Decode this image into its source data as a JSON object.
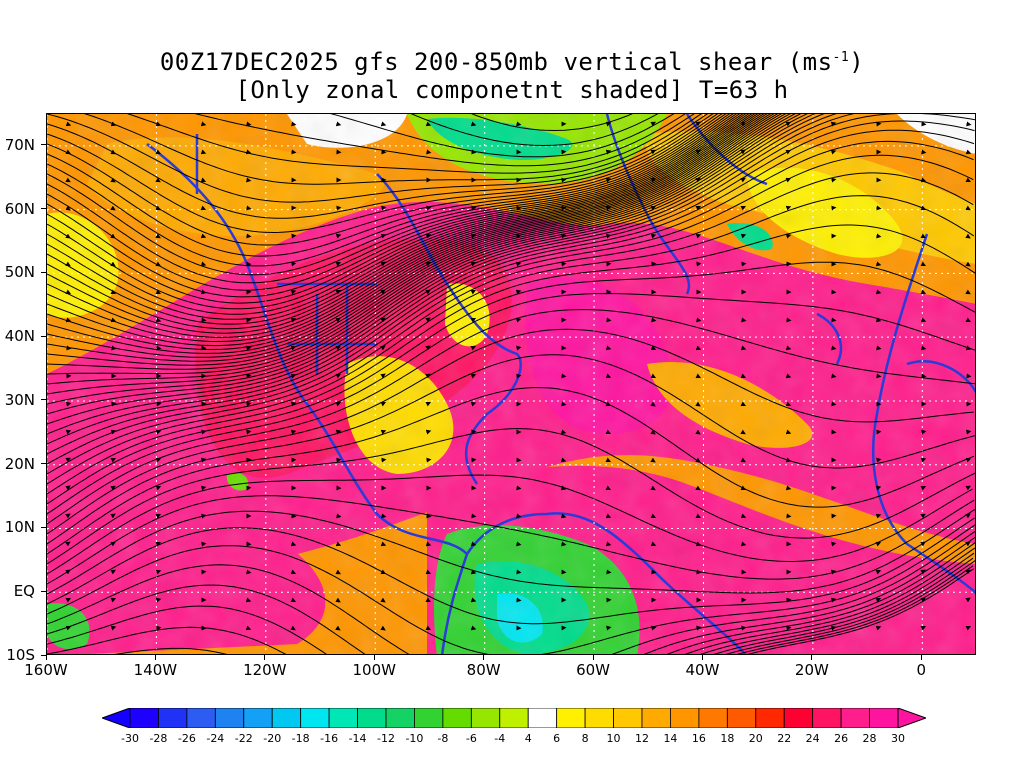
{
  "title": {
    "line1_prefix": "00Z17DEC2025 gfs 200-850mb vertical shear (ms",
    "line1_sup": "-1",
    "line1_suffix": ")",
    "line2": "[Only zonal componetnt shaded] T=63 h"
  },
  "map": {
    "lon_range": [
      -160,
      10
    ],
    "lat_range": [
      -10,
      75
    ],
    "lat_labels": [
      {
        "value": 70,
        "text": "70N"
      },
      {
        "value": 60,
        "text": "60N"
      },
      {
        "value": 50,
        "text": "50N"
      },
      {
        "value": 40,
        "text": "40N"
      },
      {
        "value": 30,
        "text": "30N"
      },
      {
        "value": 20,
        "text": "20N"
      },
      {
        "value": 10,
        "text": "10N"
      },
      {
        "value": 0,
        "text": "EQ"
      },
      {
        "value": -10,
        "text": "10S"
      }
    ],
    "lon_labels": [
      {
        "value": -160,
        "text": "160W"
      },
      {
        "value": -140,
        "text": "140W"
      },
      {
        "value": -120,
        "text": "120W"
      },
      {
        "value": -100,
        "text": "100W"
      },
      {
        "value": -80,
        "text": "80W"
      },
      {
        "value": -60,
        "text": "60W"
      },
      {
        "value": -40,
        "text": "40W"
      },
      {
        "value": -20,
        "text": "20W"
      },
      {
        "value": 0,
        "text": "0"
      }
    ],
    "coastline_color": "#2a3bd8",
    "streamline_color": "#000000",
    "gridline_style": "dotted white"
  },
  "colorbar": {
    "labels": [
      "-30",
      "-28",
      "-26",
      "-24",
      "-22",
      "-20",
      "-18",
      "-16",
      "-14",
      "-12",
      "-10",
      "-8",
      "-6",
      "-4",
      "4",
      "6",
      "8",
      "10",
      "12",
      "14",
      "16",
      "18",
      "20",
      "22",
      "24",
      "26",
      "28",
      "30"
    ],
    "colors": [
      "#1e00ff",
      "#2032f5",
      "#2c5cf2",
      "#1e82f0",
      "#14a0f5",
      "#00c8f0",
      "#00e6f0",
      "#00e6b4",
      "#00dc8c",
      "#14d264",
      "#32d232",
      "#64dc00",
      "#96e600",
      "#bef000",
      "#ffffff",
      "#fff000",
      "#ffdc00",
      "#ffc800",
      "#ffaa00",
      "#ff9600",
      "#ff7800",
      "#ff5a00",
      "#ff2800",
      "#ff0032",
      "#ff1464",
      "#ff1e8c",
      "#ff14a0"
    ],
    "under_color": "#1400ff",
    "over_color": "#ff14a0"
  }
}
